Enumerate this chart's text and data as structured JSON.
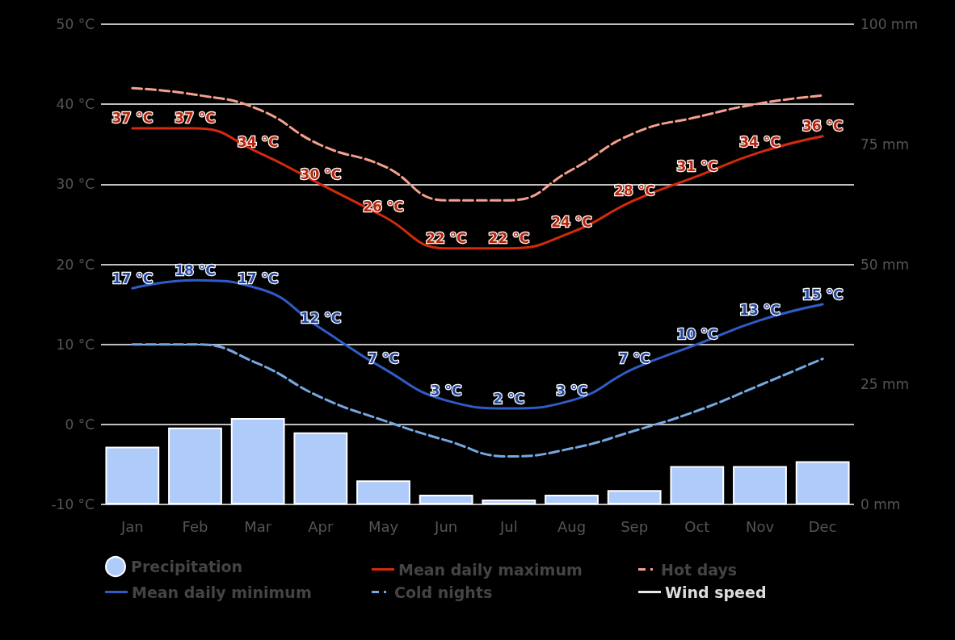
{
  "chart_data": {
    "type": "line",
    "categories": [
      "Jan",
      "Feb",
      "Mar",
      "Apr",
      "May",
      "Jun",
      "Jul",
      "Aug",
      "Sep",
      "Oct",
      "Nov",
      "Dec"
    ],
    "series": [
      {
        "name": "Precipitation",
        "type": "bar",
        "axis": "y2",
        "color": "#aecbfa",
        "values": [
          12,
          16,
          18,
          15,
          5,
          2,
          1,
          2,
          3,
          8,
          8,
          9
        ]
      },
      {
        "name": "Mean daily maximum",
        "color": "#d42a0c",
        "line_style": "solid",
        "values": [
          37,
          37,
          34,
          30,
          26,
          22,
          22,
          24,
          28,
          31,
          34,
          36
        ],
        "value_labels": [
          "37 °C",
          "37 °C",
          "34 °C",
          "30 °C",
          "26 °C",
          "22 °C",
          "22 °C",
          "24 °C",
          "28 °C",
          "31 °C",
          "34 °C",
          "36 °C"
        ]
      },
      {
        "name": "Hot days",
        "color": "#f4a08c",
        "line_style": "dashed",
        "values": [
          42,
          41.2,
          39.4,
          34.9,
          32.3,
          28,
          28,
          31.8,
          36.4,
          38.4,
          40.1,
          41.1
        ]
      },
      {
        "name": "Mean daily minimum",
        "color": "#2f5cc6",
        "line_style": "solid",
        "values": [
          17,
          18,
          17,
          12,
          7,
          3,
          2,
          3,
          7,
          10,
          13,
          15
        ],
        "value_labels": [
          "17 °C",
          "18 °C",
          "17 °C",
          "12 °C",
          "7 °C",
          "3 °C",
          "2 °C",
          "3 °C",
          "7 °C",
          "10 °C",
          "13 °C",
          "15 °C"
        ]
      },
      {
        "name": "Cold nights",
        "color": "#75a8e0",
        "line_style": "dashed",
        "values": [
          10,
          10,
          7.6,
          3.4,
          0.5,
          -2,
          -4,
          -3,
          -0.8,
          1.7,
          4.9,
          8.2
        ]
      },
      {
        "name": "Wind speed",
        "color": "#e8e8e8",
        "line_style": "solid",
        "values": [
          null,
          null,
          null,
          null,
          null,
          null,
          null,
          null,
          null,
          null,
          null,
          null
        ]
      }
    ],
    "ylim": [
      -10,
      50
    ],
    "yticks": [
      {
        "value": -10,
        "label": "-10 °C"
      },
      {
        "value": 0,
        "label": "0 °C"
      },
      {
        "value": 10,
        "label": "10 °C"
      },
      {
        "value": 20,
        "label": "20 °C"
      },
      {
        "value": 30,
        "label": "30 °C"
      },
      {
        "value": 40,
        "label": "40 °C"
      },
      {
        "value": 50,
        "label": "50 °C"
      }
    ],
    "y2lim": [
      0,
      100
    ],
    "y2ticks": [
      {
        "value": 0,
        "label": "0 mm"
      },
      {
        "value": 25,
        "label": "25 mm"
      },
      {
        "value": 50,
        "label": "50 mm"
      },
      {
        "value": 75,
        "label": "75 mm"
      },
      {
        "value": 100,
        "label": "100 mm"
      }
    ],
    "grid": "y",
    "legend": "bottom"
  }
}
